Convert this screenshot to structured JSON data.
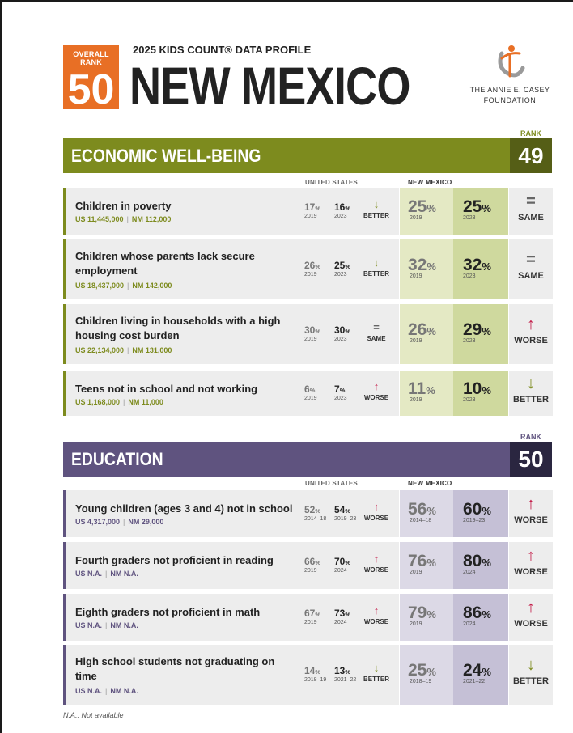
{
  "header": {
    "overall_rank_label": "OVERALL RANK",
    "overall_rank": "50",
    "profile_title": "2025 KIDS COUNT® DATA PROFILE",
    "state": "NEW MEXICO",
    "org_line1": "THE ANNIE E. CASEY",
    "org_line2": "FOUNDATION"
  },
  "colors": {
    "econ": "#7d8b1e",
    "econ_dark": "#555e16",
    "econ_nm_light": "#e4e9c4",
    "econ_nm_dark": "#cfd99e",
    "edu": "#5f537f",
    "edu_dark": "#2a2640",
    "edu_nm_light": "#dcd9e6",
    "edu_nm_dark": "#c5c0d6",
    "worse": "#c41e4a",
    "better": "#7d8b1e",
    "same": "#666666"
  },
  "labels": {
    "rank": "RANK",
    "united_states": "UNITED STATES",
    "new_mexico": "NEW MEXICO",
    "footnote": "N.A.: Not available"
  },
  "sections": [
    {
      "title": "ECONOMIC WELL-BEING",
      "rank": "49",
      "indicators": [
        {
          "title": "Children in poverty",
          "us_count": "US 11,445,000",
          "nm_count": "NM 112,000",
          "us_a": "17",
          "us_a_year": "2019",
          "us_b": "16",
          "us_b_year": "2023",
          "us_trend": "BETTER",
          "us_arrow": "↓",
          "nm_a": "25",
          "nm_a_year": "2019",
          "nm_b": "25",
          "nm_b_year": "2023",
          "nm_trend": "SAME",
          "nm_arrow": "="
        },
        {
          "title": "Children whose parents lack secure employment",
          "us_count": "US 18,437,000",
          "nm_count": "NM 142,000",
          "us_a": "26",
          "us_a_year": "2019",
          "us_b": "25",
          "us_b_year": "2023",
          "us_trend": "BETTER",
          "us_arrow": "↓",
          "nm_a": "32",
          "nm_a_year": "2019",
          "nm_b": "32",
          "nm_b_year": "2023",
          "nm_trend": "SAME",
          "nm_arrow": "="
        },
        {
          "title": "Children living in households with a high housing cost burden",
          "us_count": "US 22,134,000",
          "nm_count": "NM 131,000",
          "us_a": "30",
          "us_a_year": "2019",
          "us_b": "30",
          "us_b_year": "2023",
          "us_trend": "SAME",
          "us_arrow": "=",
          "nm_a": "26",
          "nm_a_year": "2019",
          "nm_b": "29",
          "nm_b_year": "2023",
          "nm_trend": "WORSE",
          "nm_arrow": "↑"
        },
        {
          "title": "Teens not in school and not working",
          "us_count": "US 1,168,000",
          "nm_count": "NM 11,000",
          "us_a": "6",
          "us_a_year": "2019",
          "us_b": "7",
          "us_b_year": "2023",
          "us_trend": "WORSE",
          "us_arrow": "↑",
          "nm_a": "11",
          "nm_a_year": "2019",
          "nm_b": "10",
          "nm_b_year": "2023",
          "nm_trend": "BETTER",
          "nm_arrow": "↓"
        }
      ]
    },
    {
      "title": "EDUCATION",
      "rank": "50",
      "indicators": [
        {
          "title": "Young children (ages 3 and 4) not in school",
          "us_count": "US 4,317,000",
          "nm_count": "NM 29,000",
          "us_a": "52",
          "us_a_year": "2014–18",
          "us_b": "54",
          "us_b_year": "2019–23",
          "us_trend": "WORSE",
          "us_arrow": "↑",
          "nm_a": "56",
          "nm_a_year": "2014–18",
          "nm_b": "60",
          "nm_b_year": "2019–23",
          "nm_trend": "WORSE",
          "nm_arrow": "↑"
        },
        {
          "title": "Fourth graders not proficient in reading",
          "us_count": "US N.A.",
          "nm_count": "NM N.A.",
          "us_a": "66",
          "us_a_year": "2019",
          "us_b": "70",
          "us_b_year": "2024",
          "us_trend": "WORSE",
          "us_arrow": "↑",
          "nm_a": "76",
          "nm_a_year": "2019",
          "nm_b": "80",
          "nm_b_year": "2024",
          "nm_trend": "WORSE",
          "nm_arrow": "↑"
        },
        {
          "title": "Eighth graders not proficient in math",
          "us_count": "US N.A.",
          "nm_count": "NM N.A.",
          "us_a": "67",
          "us_a_year": "2019",
          "us_b": "73",
          "us_b_year": "2024",
          "us_trend": "WORSE",
          "us_arrow": "↑",
          "nm_a": "79",
          "nm_a_year": "2019",
          "nm_b": "86",
          "nm_b_year": "2024",
          "nm_trend": "WORSE",
          "nm_arrow": "↑"
        },
        {
          "title": "High school students not graduating on time",
          "us_count": "US N.A.",
          "nm_count": "NM N.A.",
          "us_a": "14",
          "us_a_year": "2018–19",
          "us_b": "13",
          "us_b_year": "2021–22",
          "us_trend": "BETTER",
          "us_arrow": "↓",
          "nm_a": "25",
          "nm_a_year": "2018–19",
          "nm_b": "24",
          "nm_b_year": "2021–22",
          "nm_trend": "BETTER",
          "nm_arrow": "↓"
        }
      ]
    }
  ]
}
